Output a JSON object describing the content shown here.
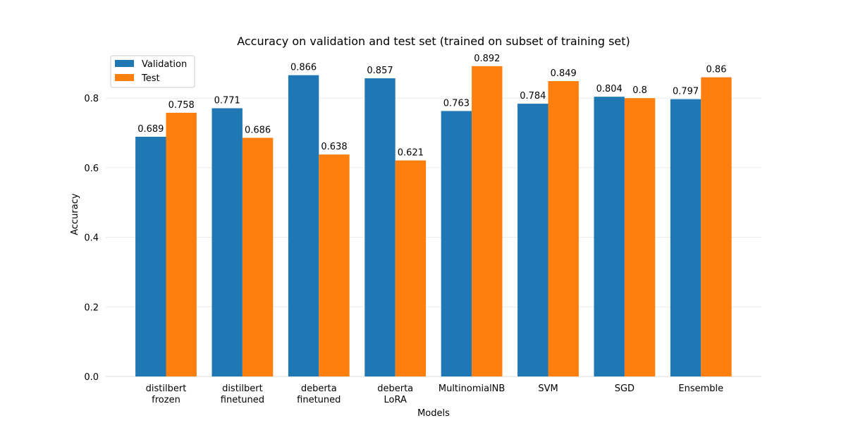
{
  "chart_data": {
    "type": "bar",
    "title": "Accuracy on validation and test set (trained on subset of training set)",
    "xlabel": "Models",
    "ylabel": "Accuracy",
    "ylim": [
      0,
      0.9
    ],
    "yticks": [
      "0.0",
      "0.2",
      "0.4",
      "0.6",
      "0.8"
    ],
    "grid": "horizontal",
    "legend_position": "top-left",
    "categories": [
      [
        "distilbert",
        "frozen"
      ],
      [
        "distilbert",
        "finetuned"
      ],
      [
        "deberta",
        "finetuned"
      ],
      [
        "deberta",
        "LoRA"
      ],
      [
        "MultinomialNB"
      ],
      [
        "SVM"
      ],
      [
        "SGD"
      ],
      [
        "Ensemble"
      ]
    ],
    "series": [
      {
        "name": "Validation",
        "color": "#1f77b4",
        "values": [
          0.689,
          0.771,
          0.866,
          0.857,
          0.763,
          0.784,
          0.804,
          0.797
        ],
        "labels": [
          "0.689",
          "0.771",
          "0.866",
          "0.857",
          "0.763",
          "0.784",
          "0.804",
          "0.797"
        ]
      },
      {
        "name": "Test",
        "color": "#ff7f0e",
        "values": [
          0.758,
          0.686,
          0.638,
          0.621,
          0.892,
          0.849,
          0.8,
          0.86
        ],
        "labels": [
          "0.758",
          "0.686",
          "0.638",
          "0.621",
          "0.892",
          "0.849",
          "0.8",
          "0.86"
        ]
      }
    ]
  }
}
